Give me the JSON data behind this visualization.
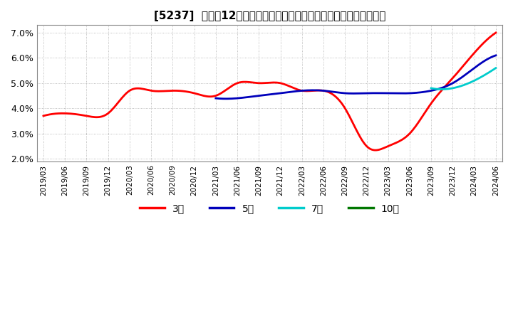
{
  "title": "[5237]  売上高12か月移動合計の対前年同期増減率の標準偏差の推移",
  "ylim": [
    0.019,
    0.073
  ],
  "yticks": [
    0.02,
    0.03,
    0.04,
    0.05,
    0.06,
    0.07
  ],
  "background_color": "#ffffff",
  "grid_color": "#aaaaaa",
  "legend_items": [
    {
      "label": "3年",
      "color": "#ff0000"
    },
    {
      "label": "5年",
      "color": "#0000bb"
    },
    {
      "label": "7年",
      "color": "#00cccc"
    },
    {
      "label": "10年",
      "color": "#007700"
    }
  ],
  "x_labels": [
    "2019/03",
    "2019/06",
    "2019/09",
    "2019/12",
    "2020/03",
    "2020/06",
    "2020/09",
    "2020/12",
    "2021/03",
    "2021/06",
    "2021/09",
    "2021/12",
    "2022/03",
    "2022/06",
    "2022/09",
    "2022/12",
    "2023/03",
    "2023/06",
    "2023/09",
    "2023/12",
    "2024/03",
    "2024/06"
  ],
  "series_3": [
    0.037,
    0.038,
    0.037,
    0.038,
    0.047,
    0.047,
    0.047,
    0.046,
    0.045,
    0.05,
    0.05,
    0.05,
    0.047,
    0.047,
    0.04,
    0.025,
    0.025,
    0.03,
    0.042,
    0.052,
    0.062,
    0.07
  ],
  "series_5": [
    null,
    null,
    null,
    null,
    null,
    null,
    null,
    null,
    0.044,
    0.044,
    0.045,
    0.046,
    0.047,
    0.047,
    0.046,
    0.046,
    0.046,
    0.046,
    0.047,
    0.05,
    0.056,
    0.061
  ],
  "series_7": [
    null,
    null,
    null,
    null,
    null,
    null,
    null,
    null,
    null,
    null,
    null,
    null,
    null,
    null,
    null,
    null,
    null,
    null,
    0.048,
    0.048,
    0.051,
    0.056
  ],
  "series_10": [
    null,
    null,
    null,
    null,
    null,
    null,
    null,
    null,
    null,
    null,
    null,
    null,
    null,
    null,
    null,
    null,
    null,
    null,
    null,
    null,
    null,
    null
  ]
}
